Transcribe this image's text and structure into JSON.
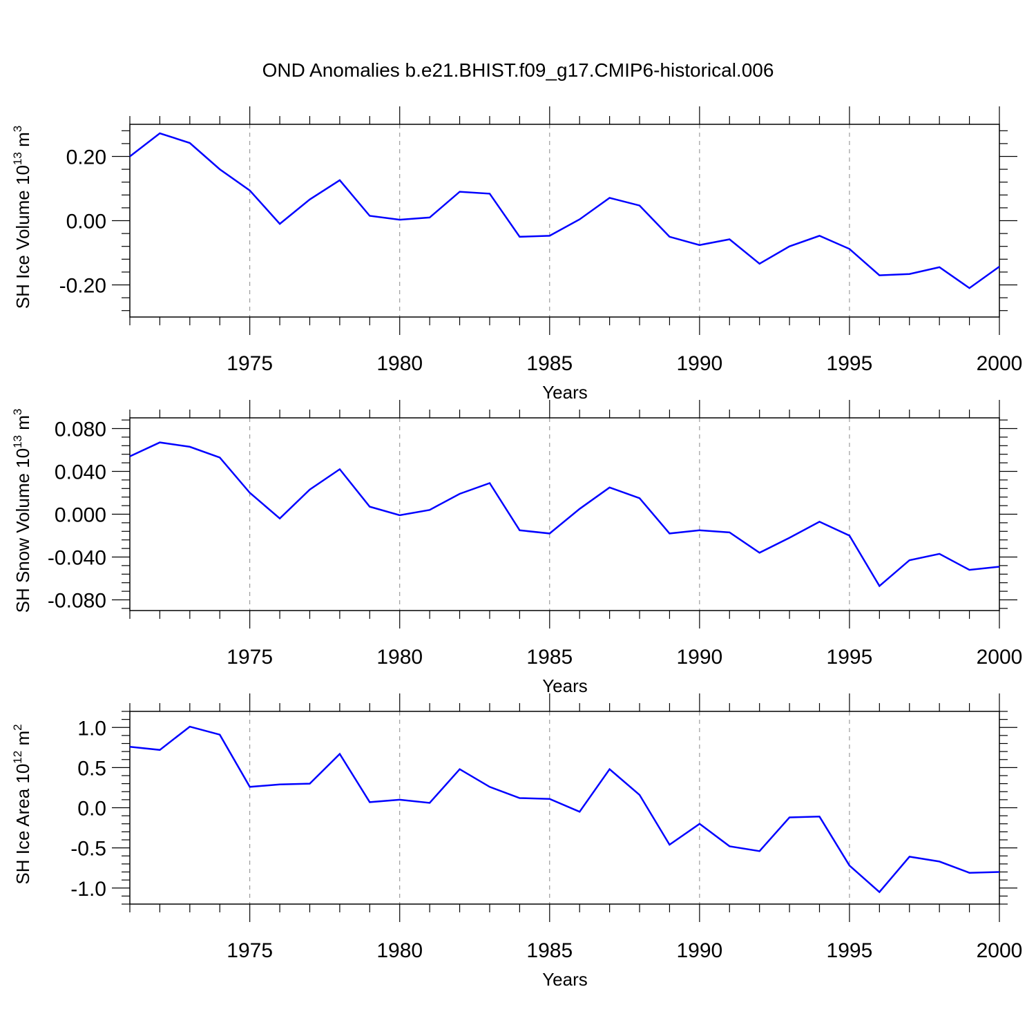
{
  "title": "OND Anomalies b.e21.BHIST.f09_g17.CMIP6-historical.006",
  "colors": {
    "line": "#0000ff",
    "axis": "#000000",
    "grid": "#888888"
  },
  "chart_data": [
    {
      "type": "line",
      "ylabel": {
        "base": "SH Ice Volume 10",
        "exp": "13",
        "unit": " m",
        "unit_exp": "3"
      },
      "xlabel": "Years",
      "xlim": [
        1971,
        2000
      ],
      "ylim": [
        -0.3,
        0.3
      ],
      "x_ticks": [
        1975,
        1980,
        1985,
        1990,
        1995,
        2000
      ],
      "y_ticks": [
        -0.2,
        0.0,
        0.2
      ],
      "y_tick_labels": [
        "-0.20",
        "0.00",
        "0.20"
      ],
      "grid": "vertical dashed at x ticks",
      "series": [
        {
          "x": [
            1971,
            1972,
            1973,
            1974,
            1975,
            1976,
            1977,
            1978,
            1979,
            1980,
            1981,
            1982,
            1983,
            1984,
            1985,
            1986,
            1987,
            1988,
            1989,
            1990,
            1991,
            1992,
            1993,
            1994,
            1995,
            1996,
            1997,
            1998,
            1999,
            2000
          ],
          "values": [
            0.2,
            0.272,
            0.242,
            0.16,
            0.094,
            -0.01,
            0.066,
            0.126,
            0.015,
            0.003,
            0.01,
            0.09,
            0.084,
            -0.05,
            -0.047,
            0.004,
            0.071,
            0.047,
            -0.05,
            -0.076,
            -0.058,
            -0.134,
            -0.08,
            -0.047,
            -0.088,
            -0.17,
            -0.166,
            -0.145,
            -0.21,
            -0.143
          ]
        }
      ]
    },
    {
      "type": "line",
      "ylabel": {
        "base": "SH Snow Volume 10",
        "exp": "13",
        "unit": " m",
        "unit_exp": "3"
      },
      "xlabel": "Years",
      "xlim": [
        1971,
        2000
      ],
      "ylim": [
        -0.09,
        0.09
      ],
      "x_ticks": [
        1975,
        1980,
        1985,
        1990,
        1995,
        2000
      ],
      "y_ticks": [
        -0.08,
        -0.04,
        0.0,
        0.04,
        0.08
      ],
      "y_tick_labels": [
        "-0.080",
        "-0.040",
        "0.000",
        "0.040",
        "0.080"
      ],
      "grid": "vertical dashed at x ticks",
      "series": [
        {
          "x": [
            1971,
            1972,
            1973,
            1974,
            1975,
            1976,
            1977,
            1978,
            1979,
            1980,
            1981,
            1982,
            1983,
            1984,
            1985,
            1986,
            1987,
            1988,
            1989,
            1990,
            1991,
            1992,
            1993,
            1994,
            1995,
            1996,
            1997,
            1998,
            1999,
            2000
          ],
          "values": [
            0.054,
            0.067,
            0.063,
            0.053,
            0.02,
            -0.004,
            0.023,
            0.042,
            0.007,
            -0.001,
            0.004,
            0.019,
            0.029,
            -0.015,
            -0.018,
            0.005,
            0.025,
            0.015,
            -0.018,
            -0.015,
            -0.017,
            -0.036,
            -0.022,
            -0.007,
            -0.02,
            -0.067,
            -0.043,
            -0.037,
            -0.052,
            -0.049
          ]
        }
      ]
    },
    {
      "type": "line",
      "ylabel": {
        "base": "SH Ice Area 10",
        "exp": "12",
        "unit": " m",
        "unit_exp": "2"
      },
      "xlabel": "Years",
      "xlim": [
        1971,
        2000
      ],
      "ylim": [
        -1.2,
        1.2
      ],
      "x_ticks": [
        1975,
        1980,
        1985,
        1990,
        1995,
        2000
      ],
      "y_ticks": [
        -1.0,
        -0.5,
        0.0,
        0.5,
        1.0
      ],
      "y_tick_labels": [
        "-1.0",
        "-0.5",
        "0.0",
        "0.5",
        "1.0"
      ],
      "grid": "vertical dashed at x ticks",
      "series": [
        {
          "x": [
            1971,
            1972,
            1973,
            1974,
            1975,
            1976,
            1977,
            1978,
            1979,
            1980,
            1981,
            1982,
            1983,
            1984,
            1985,
            1986,
            1987,
            1988,
            1989,
            1990,
            1991,
            1992,
            1993,
            1994,
            1995,
            1996,
            1997,
            1998,
            1999,
            2000
          ],
          "values": [
            0.76,
            0.72,
            1.01,
            0.91,
            0.26,
            0.29,
            0.3,
            0.67,
            0.07,
            0.1,
            0.06,
            0.48,
            0.26,
            0.12,
            0.11,
            -0.05,
            0.48,
            0.16,
            -0.46,
            -0.2,
            -0.48,
            -0.54,
            -0.12,
            -0.11,
            -0.72,
            -1.05,
            -0.61,
            -0.67,
            -0.81,
            -0.8
          ]
        }
      ]
    }
  ]
}
